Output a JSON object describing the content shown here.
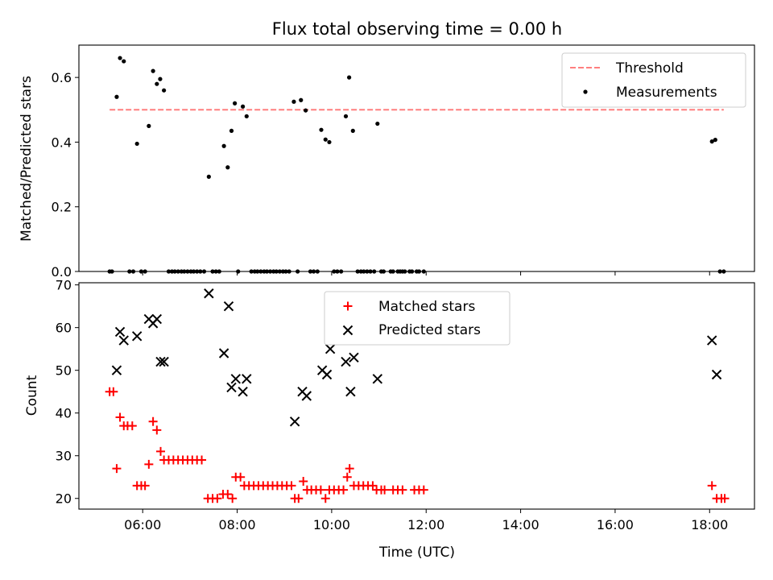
{
  "figure": {
    "title": "Flux total observing time = 0.00 h"
  },
  "chart_data": [
    {
      "type": "scatter",
      "title": "Flux total observing time = 0.00 h",
      "xlabel": "",
      "ylabel": "Matched/Predicted stars",
      "xlim": [
        4.65,
        18.95
      ],
      "ylim": [
        0,
        0.7
      ],
      "yticks": [
        0.0,
        0.2,
        0.4,
        0.6
      ],
      "ytick_labels": [
        "0.0",
        "0.2",
        "0.4",
        "0.6"
      ],
      "grid": false,
      "legend_position": "top-right",
      "threshold": {
        "name": "Threshold",
        "y": 0.5,
        "x_start": 5.3,
        "x_end": 18.3,
        "color": "#ff7f7f"
      },
      "series": [
        {
          "name": "Measurements",
          "color": "#000000",
          "marker": "dot",
          "points": [
            [
              5.3,
              0
            ],
            [
              5.35,
              0
            ],
            [
              5.45,
              0.54
            ],
            [
              5.52,
              0.66
            ],
            [
              5.6,
              0.65
            ],
            [
              5.72,
              0
            ],
            [
              5.8,
              0
            ],
            [
              5.88,
              0.395
            ],
            [
              5.97,
              0
            ],
            [
              6.05,
              0
            ],
            [
              6.13,
              0.45
            ],
            [
              6.22,
              0.62
            ],
            [
              6.3,
              0.58
            ],
            [
              6.37,
              0.595
            ],
            [
              6.45,
              0.56
            ],
            [
              6.55,
              0
            ],
            [
              6.62,
              0
            ],
            [
              6.68,
              0
            ],
            [
              6.75,
              0
            ],
            [
              6.82,
              0
            ],
            [
              6.88,
              0
            ],
            [
              6.95,
              0
            ],
            [
              7.02,
              0
            ],
            [
              7.08,
              0
            ],
            [
              7.15,
              0
            ],
            [
              7.22,
              0
            ],
            [
              7.3,
              0
            ],
            [
              7.4,
              0.293
            ],
            [
              7.48,
              0
            ],
            [
              7.55,
              0
            ],
            [
              7.62,
              0
            ],
            [
              7.72,
              0.388
            ],
            [
              7.8,
              0.322
            ],
            [
              7.88,
              0.435
            ],
            [
              7.95,
              0.52
            ],
            [
              8.02,
              0
            ],
            [
              8.12,
              0.51
            ],
            [
              8.2,
              0.48
            ],
            [
              8.3,
              0
            ],
            [
              8.37,
              0
            ],
            [
              8.43,
              0
            ],
            [
              8.5,
              0
            ],
            [
              8.57,
              0
            ],
            [
              8.63,
              0
            ],
            [
              8.7,
              0
            ],
            [
              8.77,
              0
            ],
            [
              8.83,
              0
            ],
            [
              8.9,
              0
            ],
            [
              8.97,
              0
            ],
            [
              9.03,
              0
            ],
            [
              9.1,
              0
            ],
            [
              9.2,
              0.525
            ],
            [
              9.28,
              0
            ],
            [
              9.35,
              0.53
            ],
            [
              9.45,
              0.498
            ],
            [
              9.55,
              0
            ],
            [
              9.62,
              0
            ],
            [
              9.7,
              0
            ],
            [
              9.78,
              0.438
            ],
            [
              9.87,
              0.408
            ],
            [
              9.95,
              0.4
            ],
            [
              10.05,
              0
            ],
            [
              10.12,
              0
            ],
            [
              10.2,
              0
            ],
            [
              10.3,
              0.48
            ],
            [
              10.37,
              0.6
            ],
            [
              10.45,
              0.435
            ],
            [
              10.55,
              0
            ],
            [
              10.62,
              0
            ],
            [
              10.68,
              0
            ],
            [
              10.75,
              0
            ],
            [
              10.82,
              0
            ],
            [
              10.9,
              0
            ],
            [
              10.97,
              0.457
            ],
            [
              11.05,
              0
            ],
            [
              11.1,
              0
            ],
            [
              11.25,
              0
            ],
            [
              11.3,
              0
            ],
            [
              11.4,
              0
            ],
            [
              11.45,
              0
            ],
            [
              11.5,
              0
            ],
            [
              11.55,
              0
            ],
            [
              11.65,
              0
            ],
            [
              11.7,
              0
            ],
            [
              11.8,
              0
            ],
            [
              11.85,
              0
            ],
            [
              11.95,
              0
            ],
            [
              18.05,
              0.402
            ],
            [
              18.12,
              0.407
            ],
            [
              18.22,
              0
            ],
            [
              18.3,
              0
            ]
          ]
        }
      ]
    },
    {
      "type": "scatter",
      "title": "",
      "xlabel": "Time (UTC)",
      "ylabel": "Count",
      "xlim": [
        4.65,
        18.95
      ],
      "ylim": [
        17.5,
        70.5
      ],
      "xticks": [
        6,
        8,
        10,
        12,
        14,
        16,
        18
      ],
      "xtick_labels": [
        "06:00",
        "08:00",
        "10:00",
        "12:00",
        "14:00",
        "16:00",
        "18:00"
      ],
      "yticks": [
        20,
        30,
        40,
        50,
        60,
        70
      ],
      "ytick_labels": [
        "20",
        "30",
        "40",
        "50",
        "60",
        "70"
      ],
      "grid": false,
      "legend_position": "top-center",
      "series": [
        {
          "name": "Matched stars",
          "color": "#ff0000",
          "marker": "plus",
          "points": [
            [
              5.3,
              45
            ],
            [
              5.38,
              45
            ],
            [
              5.45,
              27
            ],
            [
              5.52,
              39
            ],
            [
              5.6,
              37
            ],
            [
              5.68,
              37
            ],
            [
              5.78,
              37
            ],
            [
              5.88,
              23
            ],
            [
              5.97,
              23
            ],
            [
              6.05,
              23
            ],
            [
              6.13,
              28
            ],
            [
              6.22,
              38
            ],
            [
              6.3,
              36
            ],
            [
              6.38,
              31
            ],
            [
              6.45,
              29
            ],
            [
              6.55,
              29
            ],
            [
              6.65,
              29
            ],
            [
              6.75,
              29
            ],
            [
              6.85,
              29
            ],
            [
              6.95,
              29
            ],
            [
              7.05,
              29
            ],
            [
              7.15,
              29
            ],
            [
              7.25,
              29
            ],
            [
              7.38,
              20
            ],
            [
              7.48,
              20
            ],
            [
              7.58,
              20
            ],
            [
              7.7,
              21
            ],
            [
              7.8,
              21
            ],
            [
              7.9,
              20
            ],
            [
              7.97,
              25
            ],
            [
              8.07,
              25
            ],
            [
              8.15,
              23
            ],
            [
              8.25,
              23
            ],
            [
              8.35,
              23
            ],
            [
              8.45,
              23
            ],
            [
              8.55,
              23
            ],
            [
              8.65,
              23
            ],
            [
              8.75,
              23
            ],
            [
              8.85,
              23
            ],
            [
              8.95,
              23
            ],
            [
              9.05,
              23
            ],
            [
              9.15,
              23
            ],
            [
              9.22,
              20
            ],
            [
              9.3,
              20
            ],
            [
              9.4,
              24
            ],
            [
              9.48,
              22
            ],
            [
              9.57,
              22
            ],
            [
              9.67,
              22
            ],
            [
              9.77,
              22
            ],
            [
              9.87,
              20
            ],
            [
              9.95,
              22
            ],
            [
              10.05,
              22
            ],
            [
              10.15,
              22
            ],
            [
              10.25,
              22
            ],
            [
              10.33,
              25
            ],
            [
              10.38,
              27
            ],
            [
              10.47,
              23
            ],
            [
              10.57,
              23
            ],
            [
              10.67,
              23
            ],
            [
              10.77,
              23
            ],
            [
              10.87,
              23
            ],
            [
              10.95,
              22
            ],
            [
              11.05,
              22
            ],
            [
              11.12,
              22
            ],
            [
              11.3,
              22
            ],
            [
              11.4,
              22
            ],
            [
              11.5,
              22
            ],
            [
              11.75,
              22
            ],
            [
              11.85,
              22
            ],
            [
              11.95,
              22
            ],
            [
              18.05,
              23
            ],
            [
              18.15,
              20
            ],
            [
              18.25,
              20
            ],
            [
              18.32,
              20
            ]
          ]
        },
        {
          "name": "Predicted stars",
          "color": "#000000",
          "marker": "x",
          "points": [
            [
              5.45,
              50
            ],
            [
              5.52,
              59
            ],
            [
              5.6,
              57
            ],
            [
              5.88,
              58
            ],
            [
              6.13,
              62
            ],
            [
              6.22,
              61
            ],
            [
              6.3,
              62
            ],
            [
              6.38,
              52
            ],
            [
              6.45,
              52
            ],
            [
              7.4,
              68
            ],
            [
              7.72,
              54
            ],
            [
              7.82,
              65
            ],
            [
              7.88,
              46
            ],
            [
              7.97,
              48
            ],
            [
              8.12,
              45
            ],
            [
              8.2,
              48
            ],
            [
              9.22,
              38
            ],
            [
              9.38,
              45
            ],
            [
              9.47,
              44
            ],
            [
              9.8,
              50
            ],
            [
              9.9,
              49
            ],
            [
              9.97,
              55
            ],
            [
              10.3,
              52
            ],
            [
              10.4,
              45
            ],
            [
              10.47,
              53
            ],
            [
              10.97,
              48
            ],
            [
              18.05,
              57
            ],
            [
              18.15,
              49
            ]
          ]
        }
      ]
    }
  ]
}
